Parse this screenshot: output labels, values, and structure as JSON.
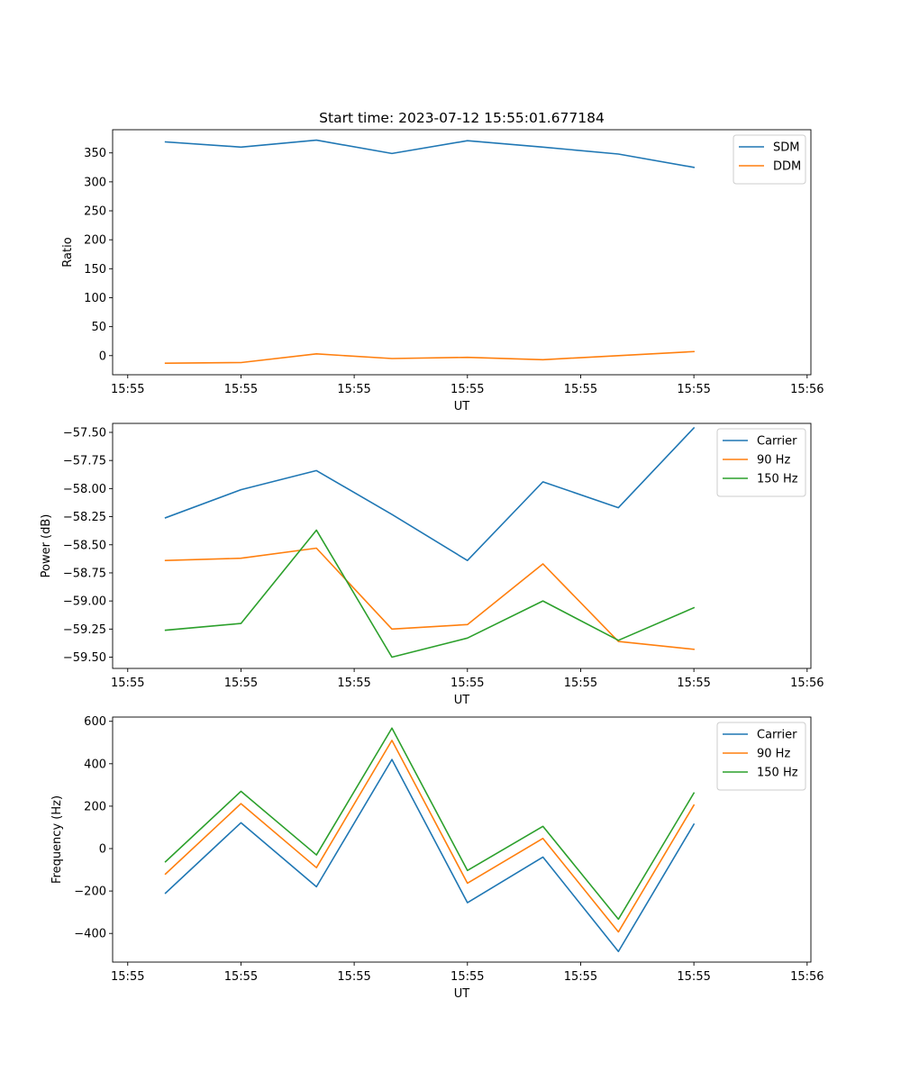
{
  "figure_title": "Start time: 2023-07-12 15:55:01.677184",
  "chart_data": [
    {
      "type": "line",
      "title": "Start time: 2023-07-12 15:55:01.677184",
      "xlabel": "UT",
      "ylabel": "Ratio",
      "x": [
        0.5,
        1.5,
        2.5,
        3.5,
        4.5,
        5.5,
        6.5,
        7.5
      ],
      "xlim": [
        -0.2,
        9.05
      ],
      "xticks": [
        0,
        1.5,
        3,
        4.5,
        6,
        7.5,
        9
      ],
      "xticklabels": [
        "15:55",
        "15:55",
        "15:55",
        "15:55",
        "15:55",
        "15:55",
        "15:56"
      ],
      "ylim": [
        -33,
        390
      ],
      "yticks": [
        0,
        50,
        100,
        150,
        200,
        250,
        300,
        350
      ],
      "yticklabels": [
        "0",
        "50",
        "100",
        "150",
        "200",
        "250",
        "300",
        "350"
      ],
      "legend_position": "top-right",
      "series": [
        {
          "name": "SDM",
          "color": "#1f77b4",
          "values": [
            369,
            360,
            372,
            349,
            371,
            360,
            348,
            325
          ]
        },
        {
          "name": "DDM",
          "color": "#ff7f0e",
          "values": [
            -13,
            -12,
            3,
            -5,
            -3,
            -7,
            0,
            7
          ]
        }
      ]
    },
    {
      "type": "line",
      "title": "",
      "xlabel": "UT",
      "ylabel": "Power (dB)",
      "x": [
        0.5,
        1.5,
        2.5,
        3.5,
        4.5,
        5.5,
        6.5,
        7.5
      ],
      "xlim": [
        -0.2,
        9.05
      ],
      "xticks": [
        0,
        1.5,
        3,
        4.5,
        6,
        7.5,
        9
      ],
      "xticklabels": [
        "15:55",
        "15:55",
        "15:55",
        "15:55",
        "15:55",
        "15:55",
        "15:56"
      ],
      "ylim": [
        -59.6,
        -57.42
      ],
      "yticks": [
        -57.5,
        -57.75,
        -58.0,
        -58.25,
        -58.5,
        -58.75,
        -59.0,
        -59.25,
        -59.5
      ],
      "yticklabels": [
        "−57.50",
        "−57.75",
        "−58.00",
        "−58.25",
        "−58.50",
        "−58.75",
        "−59.00",
        "−59.25",
        "−59.50"
      ],
      "legend_position": "top-right",
      "series": [
        {
          "name": "Carrier",
          "color": "#1f77b4",
          "values": [
            -58.26,
            -58.01,
            -57.84,
            -58.23,
            -58.64,
            -57.94,
            -58.17,
            -57.46
          ]
        },
        {
          "name": "90 Hz",
          "color": "#ff7f0e",
          "values": [
            -58.64,
            -58.62,
            -58.53,
            -59.25,
            -59.21,
            -58.67,
            -59.36,
            -59.43
          ]
        },
        {
          "name": "150 Hz",
          "color": "#2ca02c",
          "values": [
            -59.26,
            -59.2,
            -58.37,
            -59.5,
            -59.33,
            -59.0,
            -59.35,
            -59.06
          ]
        }
      ]
    },
    {
      "type": "line",
      "title": "",
      "xlabel": "UT",
      "ylabel": "Frequency (Hz)",
      "x": [
        0.5,
        1.5,
        2.5,
        3.5,
        4.5,
        5.5,
        6.5,
        7.5
      ],
      "xlim": [
        -0.2,
        9.05
      ],
      "xticks": [
        0,
        1.5,
        3,
        4.5,
        6,
        7.5,
        9
      ],
      "xticklabels": [
        "15:55",
        "15:55",
        "15:55",
        "15:55",
        "15:55",
        "15:55",
        "15:56"
      ],
      "ylim": [
        -535,
        620
      ],
      "yticks": [
        600,
        400,
        200,
        0,
        -200,
        -400
      ],
      "yticklabels": [
        "600",
        "400",
        "200",
        "0",
        "−200",
        "−400"
      ],
      "legend_position": "top-right",
      "series": [
        {
          "name": "Carrier",
          "color": "#1f77b4",
          "values": [
            -210,
            122,
            -180,
            420,
            -255,
            -40,
            -485,
            115
          ]
        },
        {
          "name": "90 Hz",
          "color": "#ff7f0e",
          "values": [
            -120,
            212,
            -90,
            510,
            -163,
            48,
            -393,
            205
          ]
        },
        {
          "name": "150 Hz",
          "color": "#2ca02c",
          "values": [
            -62,
            270,
            -30,
            568,
            -103,
            105,
            -333,
            262
          ]
        }
      ]
    }
  ]
}
